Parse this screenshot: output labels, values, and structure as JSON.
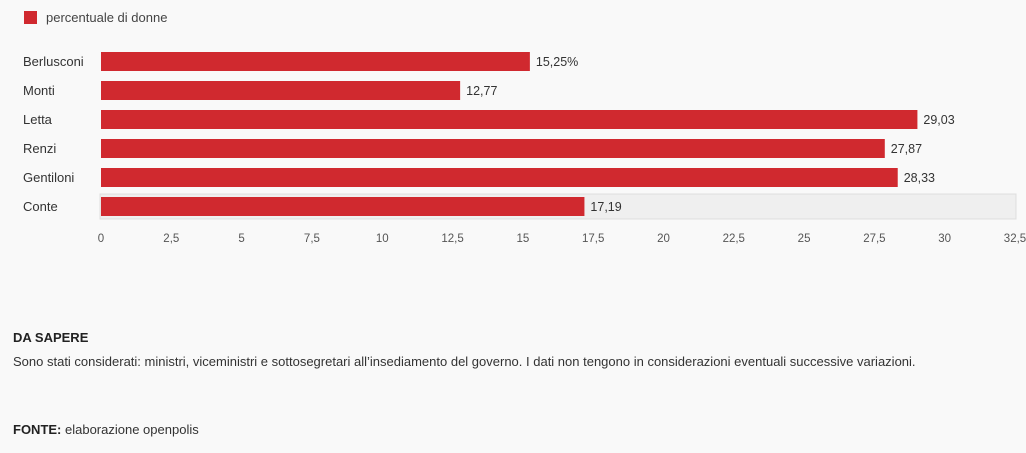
{
  "chart_data": {
    "type": "bar",
    "orientation": "horizontal",
    "categories": [
      "Berlusconi",
      "Monti",
      "Letta",
      "Renzi",
      "Gentiloni",
      "Conte"
    ],
    "series": [
      {
        "name": "percentuale di donne",
        "color": "#d0292f",
        "values": [
          15.25,
          12.77,
          29.03,
          27.87,
          28.33,
          17.19
        ],
        "value_labels": [
          "15,25%",
          "12,77",
          "29,03",
          "27,87",
          "28,33",
          "17,19"
        ]
      }
    ],
    "xlim": [
      0,
      32.5
    ],
    "x_ticks": [
      0,
      2.5,
      5,
      7.5,
      10,
      12.5,
      15,
      17.5,
      20,
      22.5,
      25,
      27.5,
      30,
      32.5
    ],
    "x_tick_labels": [
      "0",
      "2,5",
      "5",
      "7,5",
      "10",
      "12,5",
      "15",
      "17,5",
      "20",
      "22,5",
      "25",
      "27,5",
      "30",
      "32,5"
    ],
    "highlighted_category": "Conte",
    "legend_position": "top-left",
    "grid": false,
    "title": "",
    "xlabel": "",
    "ylabel": ""
  },
  "legend": {
    "label": "percentuale di donne"
  },
  "notes": {
    "title": "DA SAPERE",
    "text": "Sono stati considerati: ministri, viceministri e sottosegretari all’insediamento del governo. I dati non tengono in considerazioni eventuali successive variazioni."
  },
  "source": {
    "label": "FONTE:",
    "text": " elaborazione openpolis"
  }
}
